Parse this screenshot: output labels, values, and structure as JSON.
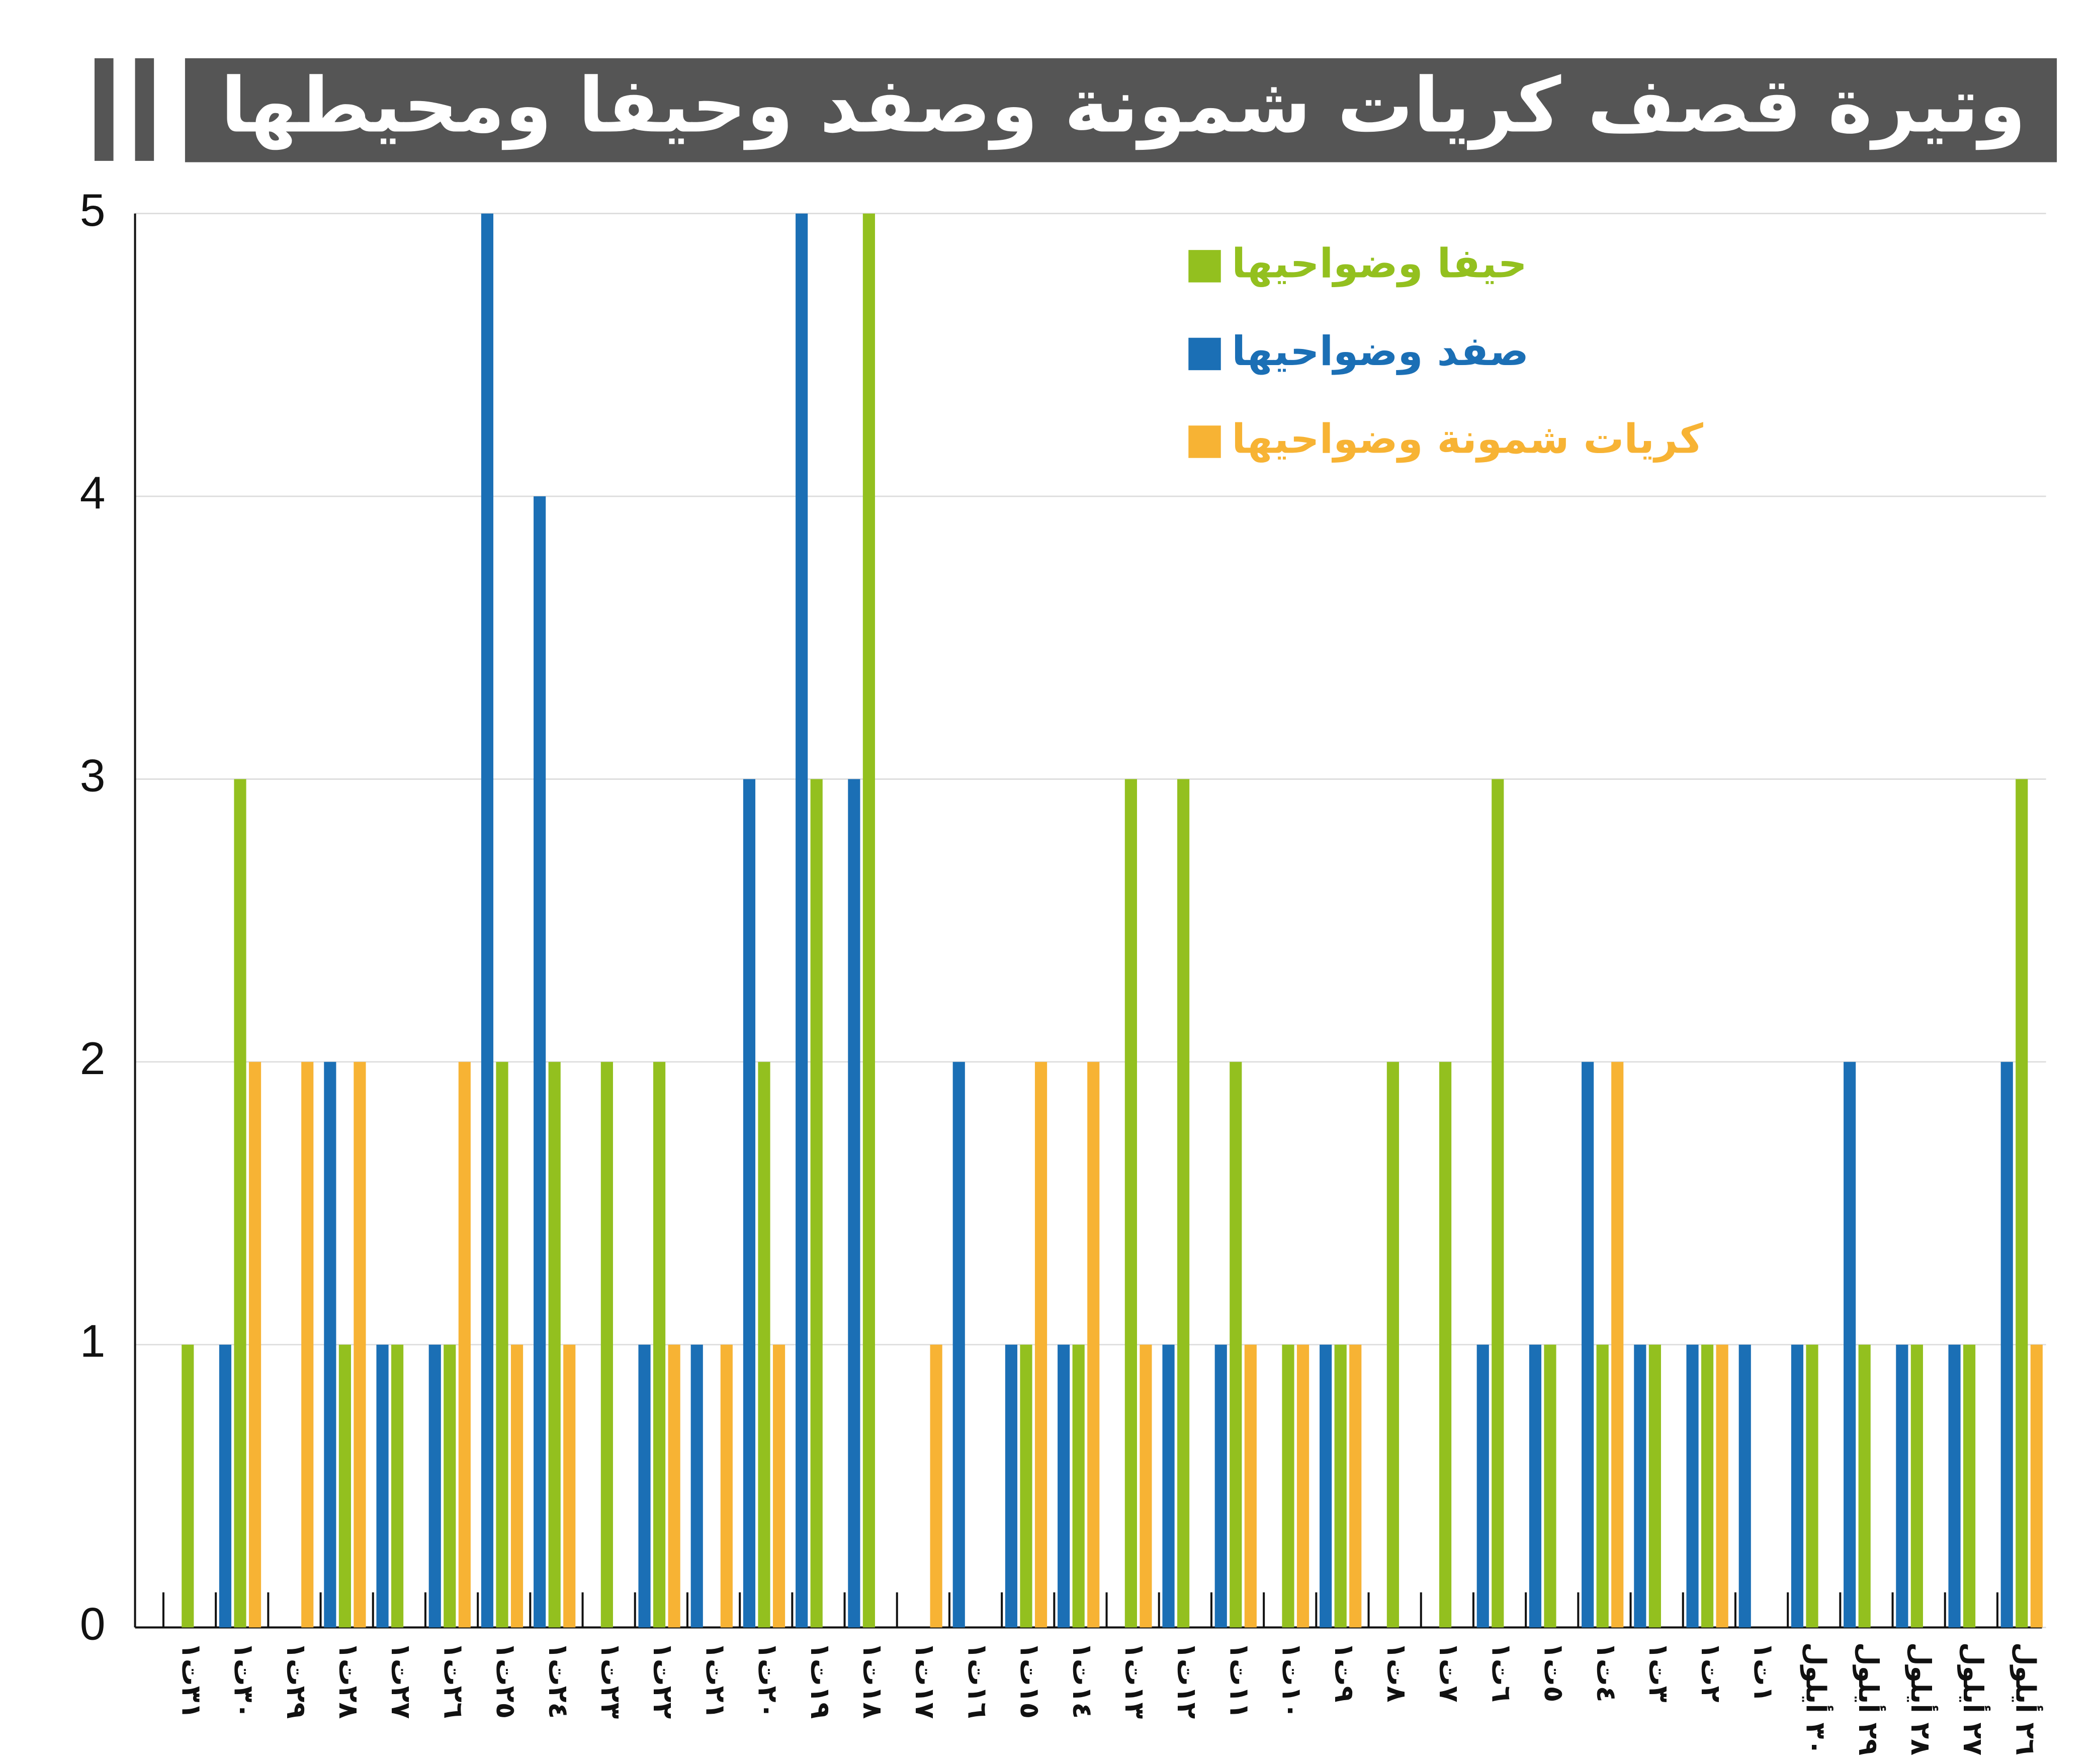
{
  "chart_data": {
    "type": "bar",
    "title": "وتيرة قصف كريات شمونة وصفد وحيفا ومحيطها",
    "categories": [
      "٣١ت١",
      "٣٠ت١",
      "٢٩ت١",
      "٢٨ت١",
      "٢٧ت١",
      "٢٦ت١",
      "٢٥ت١",
      "٢٤ت١",
      "٢٣ت١",
      "٢٢ت١",
      "٢١ت١",
      "٢٠ت١",
      "١٩ت١",
      "١٨ت١",
      "١٧ت١",
      "١٦ت١",
      "١٥ت١",
      "١٤ت١",
      "١٣ت١",
      "١٢ت١",
      "١١ت١",
      "١٠ت١",
      "٩ت١",
      "٨ت١",
      "٧ت١",
      "٦ت١",
      "٥ت١",
      "٤ت١",
      "٣ت١",
      "٢ت١",
      "١ت١",
      "٣٠ أيلول",
      "٢٩ أيلول",
      "٢٨ أيلول",
      "٢٧ أيلول",
      "٢٦ أيلول"
    ],
    "series": [
      {
        "name": "حيفا وضواحيها",
        "color": "#93c01f",
        "values": [
          1,
          3,
          0,
          1,
          1,
          1,
          2,
          2,
          2,
          2,
          0,
          2,
          3,
          5,
          0,
          0,
          1,
          1,
          3,
          3,
          2,
          1,
          1,
          2,
          2,
          3,
          1,
          1,
          1,
          1,
          0,
          1,
          1,
          1,
          1,
          3
        ]
      },
      {
        "name": "صفد وضواحيها",
        "color": "#1b6fb5",
        "values": [
          0,
          1,
          0,
          2,
          1,
          1,
          5,
          4,
          0,
          1,
          1,
          3,
          5,
          3,
          0,
          2,
          1,
          1,
          0,
          1,
          1,
          0,
          1,
          0,
          0,
          1,
          1,
          2,
          1,
          1,
          1,
          1,
          2,
          1,
          1,
          2
        ]
      },
      {
        "name": "كريات شمونة وضواحيها",
        "color": "#f7b334",
        "values": [
          0,
          2,
          2,
          2,
          0,
          2,
          1,
          1,
          0,
          1,
          1,
          1,
          0,
          0,
          1,
          0,
          2,
          2,
          1,
          0,
          1,
          1,
          1,
          0,
          0,
          0,
          0,
          2,
          0,
          1,
          0,
          0,
          0,
          0,
          0,
          1
        ]
      }
    ],
    "ylim": [
      0,
      5
    ],
    "yticks": [
      0,
      1,
      2,
      3,
      4,
      5
    ],
    "grid": true
  }
}
